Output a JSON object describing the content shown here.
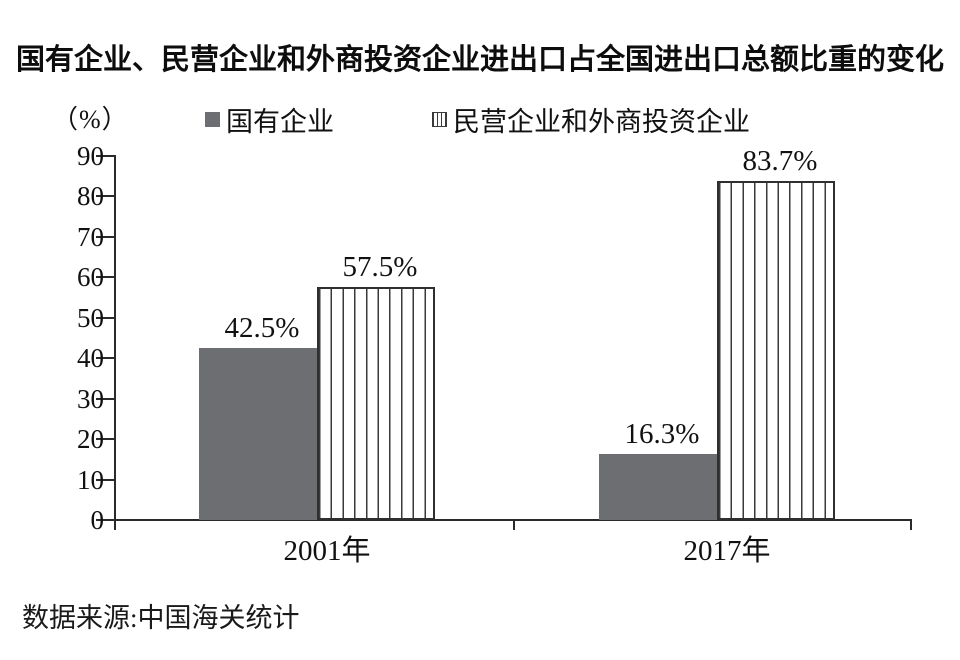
{
  "title": "国有企业、民营企业和外商投资企业进出口占全国进出口总额比重的变化",
  "source_note": "数据来源:中国海关统计",
  "chart_data": {
    "type": "bar",
    "title": "国有企业、民营企业和外商投资企业进出口占全国进出口总额比重的变化",
    "unit_label": "（%）",
    "categories": [
      "2001年",
      "2017年"
    ],
    "series": [
      {
        "name": "国有企业",
        "values": [
          42.5,
          16.3
        ],
        "pattern": "solid",
        "color": "#6c6e72"
      },
      {
        "name": "民营企业和外商投资企业",
        "values": [
          57.5,
          83.7
        ],
        "pattern": "striped",
        "color": "#ffffff",
        "stripe_color": "#3a3a3a"
      }
    ],
    "value_label_suffix": "%",
    "value_labels": [
      [
        "42.5%",
        "16.3%"
      ],
      [
        "57.5%",
        "83.7%"
      ]
    ],
    "ylim": [
      0,
      90
    ],
    "y_ticks": [
      0,
      10,
      20,
      30,
      40,
      50,
      60,
      70,
      80,
      90
    ],
    "grid": false,
    "legend_position": "top",
    "axis_color": "#2a2a2a"
  }
}
